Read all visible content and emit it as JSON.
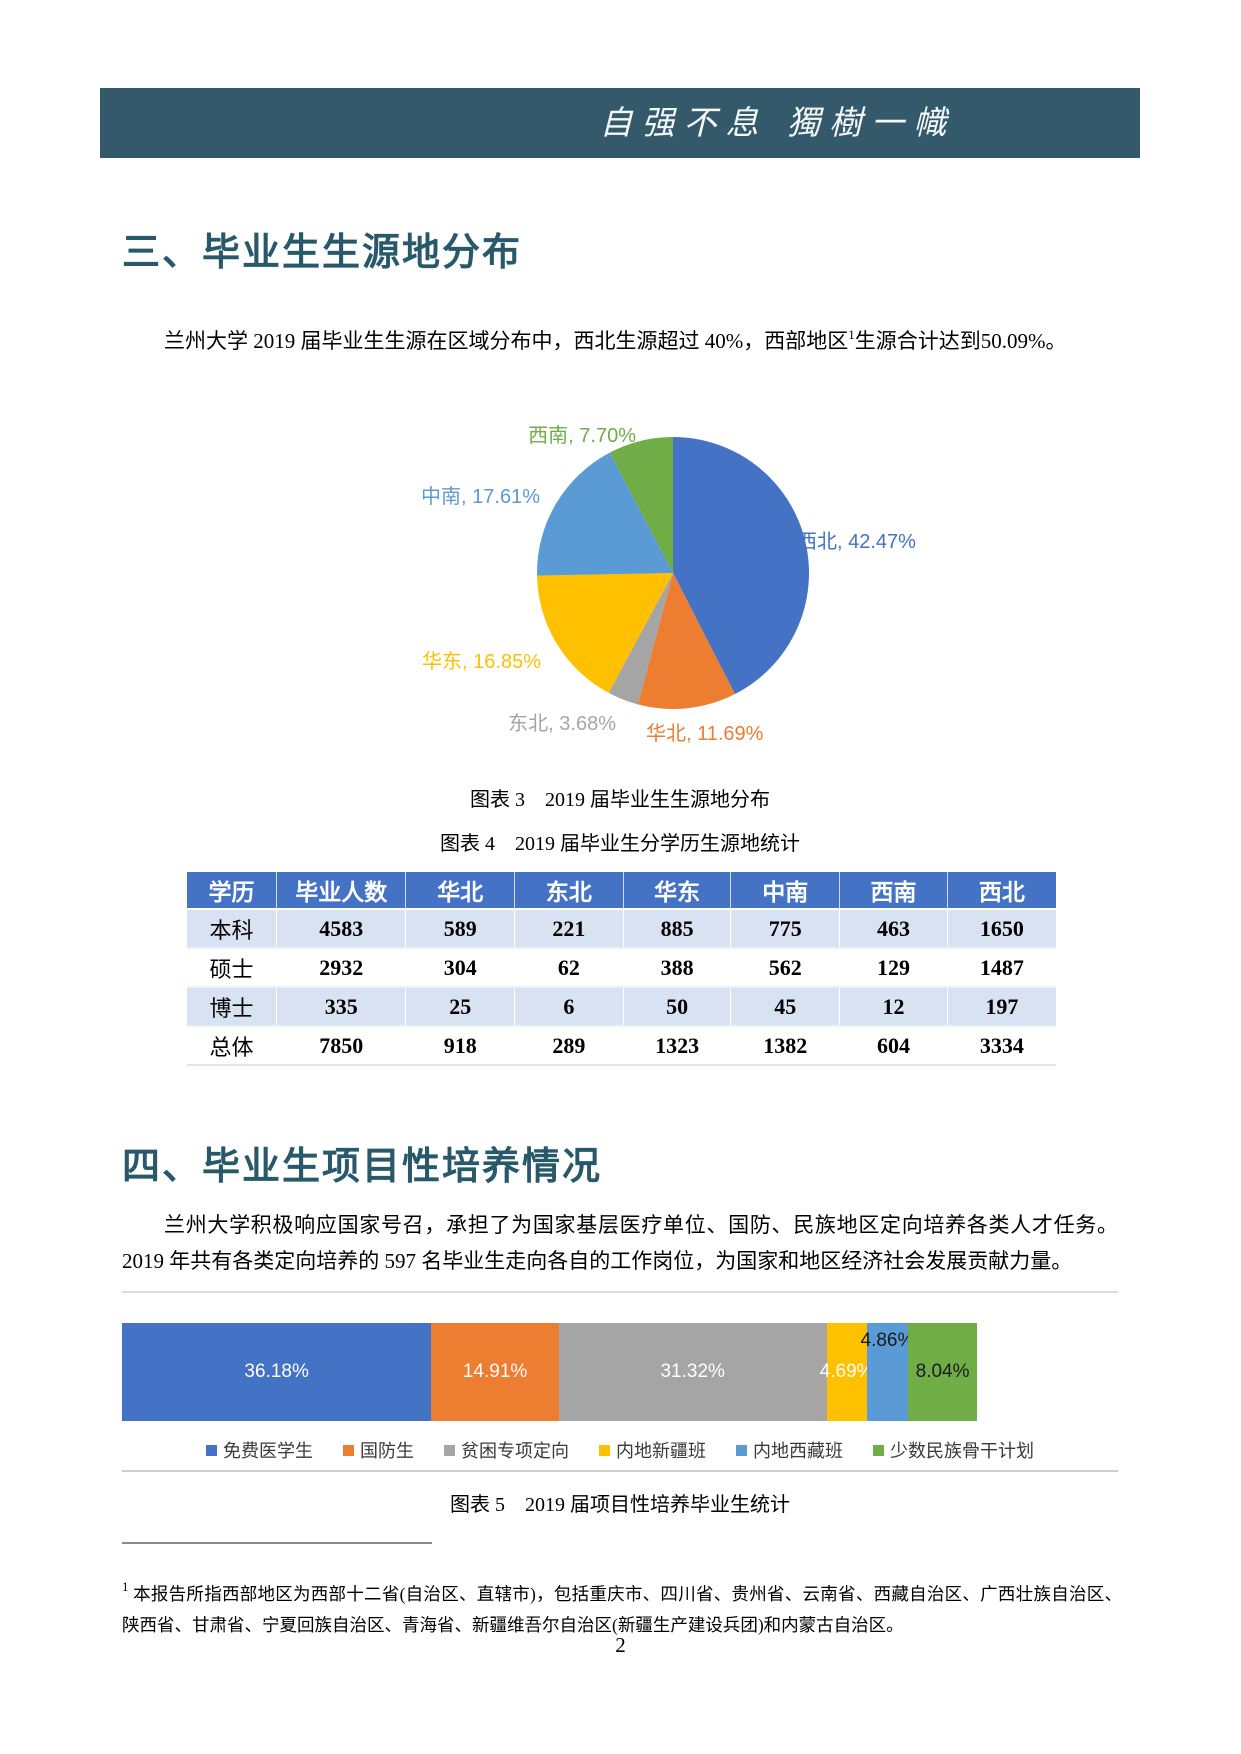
{
  "banner": {
    "motto": "自强不息 獨樹一幟",
    "bg_color": "#33596B"
  },
  "section_origin": {
    "title": "三、毕业生生源地分布",
    "paragraph": {
      "before_sup": "兰州大学 2019 届毕业生生源在区域分布中，西北生源超过 40%，西部地区",
      "sup": "1",
      "after_sup": "生源合计达到50.09%。"
    },
    "figure3_caption": "图表 3　2019 届毕业生生源地分布",
    "figure4_caption": "图表 4　2019 届毕业生分学历生源地统计"
  },
  "table": {
    "header_bg": "#4472C4",
    "alt_row_bg": "#D9E2F3",
    "headers": [
      "学历",
      "毕业人数",
      "华北",
      "东北",
      "华东",
      "中南",
      "西南",
      "西北"
    ],
    "rows": [
      [
        "本科",
        "4583",
        "589",
        "221",
        "885",
        "775",
        "463",
        "1650"
      ],
      [
        "硕士",
        "2932",
        "304",
        "62",
        "388",
        "562",
        "129",
        "1487"
      ],
      [
        "博士",
        "335",
        "25",
        "6",
        "50",
        "45",
        "12",
        "197"
      ],
      [
        "总体",
        "7850",
        "918",
        "289",
        "1323",
        "1382",
        "604",
        "3334"
      ]
    ]
  },
  "section_programs": {
    "title": "四、毕业生项目性培养情况",
    "paragraph": "兰州大学积极响应国家号召，承担了为国家基层医疗单位、国防、民族地区定向培养各类人才任务。2019 年共有各类定向培养的 597 名毕业生走向各自的工作岗位，为国家和地区经济社会发展贡献力量。",
    "figure5_caption": "图表 5　2019 届项目性培养毕业生统计"
  },
  "footnote": {
    "sup": "1",
    "text": "本报告所指西部地区为西部十二省(自治区、直辖市)，包括重庆市、四川省、贵州省、云南省、西藏自治区、广西壮族自治区、陕西省、甘肃省、宁夏回族自治区、青海省、新疆维吾尔自治区(新疆生产建设兵团)和内蒙古自治区。"
  },
  "page_number": "2",
  "chart_data": [
    {
      "type": "pie",
      "caption": "图表 3　2019 届毕业生生源地分布",
      "start_angle_deg": 0,
      "direction": "clockwise",
      "slices": [
        {
          "name": "西北",
          "value": 42.47,
          "color": "#4472C4",
          "label": "西北, 42.47%"
        },
        {
          "name": "华北",
          "value": 11.69,
          "color": "#ED7D31",
          "label": "华北, 11.69%"
        },
        {
          "name": "东北",
          "value": 3.68,
          "color": "#A5A5A5",
          "label": "东北, 3.68%"
        },
        {
          "name": "华东",
          "value": 16.85,
          "color": "#FFC000",
          "label": "华东, 16.85%"
        },
        {
          "name": "中南",
          "value": 17.61,
          "color": "#5B9BD5",
          "label": "中南, 17.61%"
        },
        {
          "name": "西南",
          "value": 7.7,
          "color": "#70AD47",
          "label": "西南, 7.70%"
        }
      ]
    },
    {
      "type": "bar",
      "subtype": "100-percent-stacked-horizontal",
      "caption": "图表 5　2019 届项目性培养毕业生统计",
      "legend_position": "bottom",
      "series": [
        {
          "name": "免费医学生",
          "value": 36.18,
          "color": "#4472C4",
          "label": "36.18%",
          "label_color": "#FFFFFF",
          "label_raised": false
        },
        {
          "name": "国防生",
          "value": 14.91,
          "color": "#ED7D31",
          "label": "14.91%",
          "label_color": "#FFFFFF",
          "label_raised": false
        },
        {
          "name": "贫困专项定向",
          "value": 31.32,
          "color": "#A5A5A5",
          "label": "31.32%",
          "label_color": "#FFFFFF",
          "label_raised": false
        },
        {
          "name": "内地新疆班",
          "value": 4.69,
          "color": "#FFC000",
          "label": "4.69%",
          "label_color": "#FFFFFF",
          "label_raised": false
        },
        {
          "name": "内地西藏班",
          "value": 4.86,
          "color": "#5B9BD5",
          "label": "4.86%",
          "label_color": "#1a1a1a",
          "label_raised": true
        },
        {
          "name": "少数民族骨干计划",
          "value": 8.04,
          "color": "#70AD47",
          "label": "8.04%",
          "label_color": "#1a1a1a",
          "label_raised": false
        }
      ]
    }
  ]
}
